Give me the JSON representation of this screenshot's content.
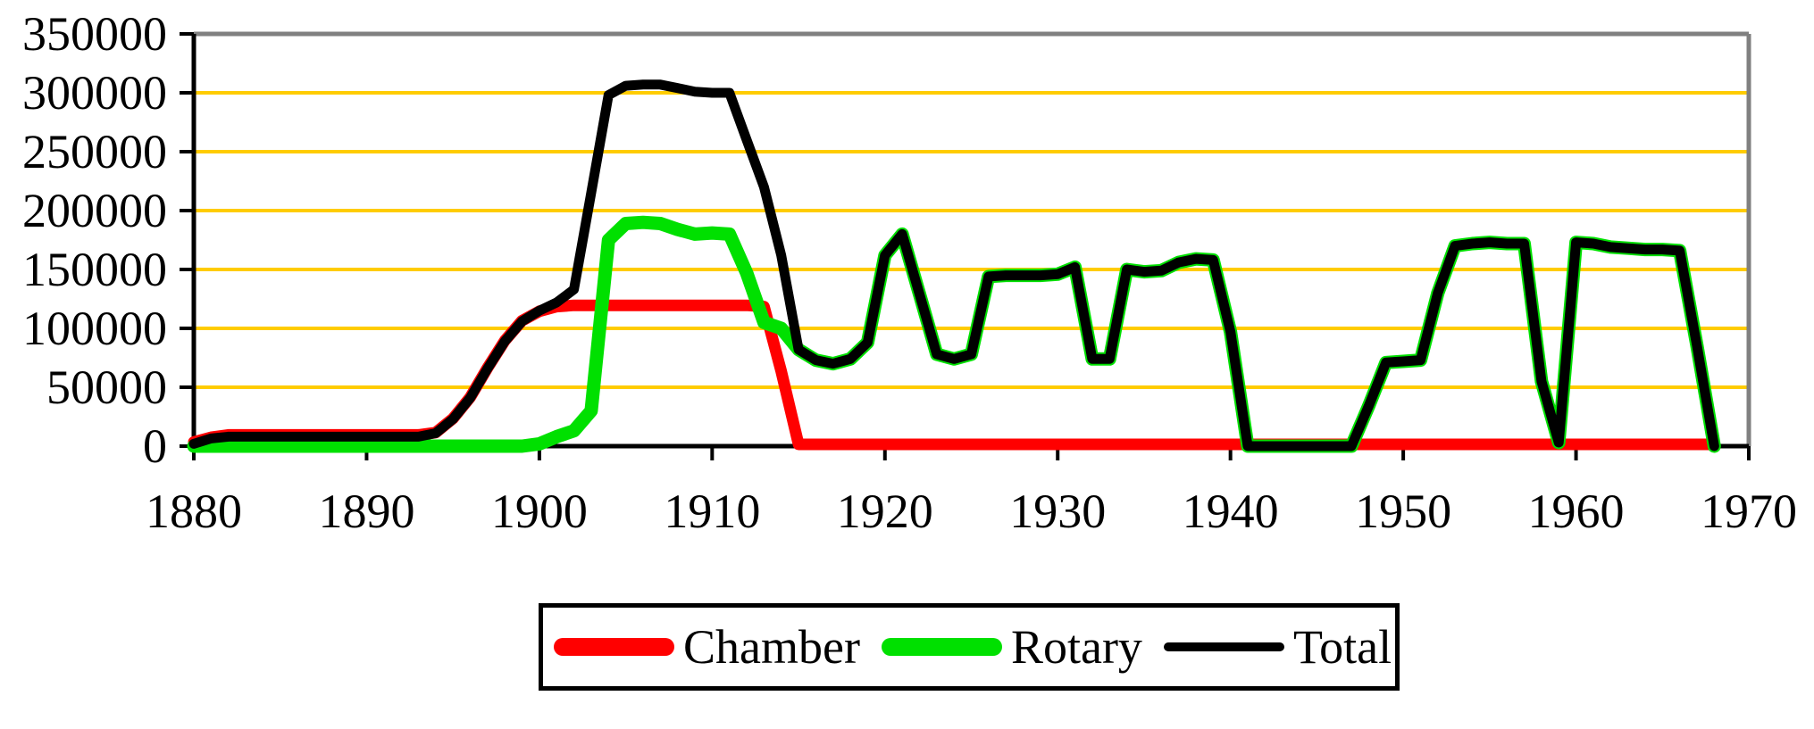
{
  "figure": {
    "background_color": "#FFFFFF",
    "plot_border_color": "#808080",
    "axis_color": "#000000",
    "gridline_color": "#FFCC00"
  },
  "legend": {
    "position": "bottom-center",
    "border_color": "#000000"
  },
  "chart_data": {
    "type": "line",
    "title": "",
    "xlabel": "",
    "ylabel": "",
    "x_range": [
      1880,
      1970
    ],
    "ylim": [
      0,
      350000
    ],
    "grid": "horizontal",
    "grid_color": "#FFCC00",
    "legend_position": "bottom",
    "x_tick_labels": [
      "1880",
      "1890",
      "1900",
      "1910",
      "1920",
      "1930",
      "1940",
      "1950",
      "1960",
      "1970"
    ],
    "y_tick_labels": [
      "0",
      "50000",
      "100000",
      "150000",
      "200000",
      "250000",
      "300000",
      "350000"
    ],
    "x_ticks": [
      1880,
      1890,
      1900,
      1910,
      1920,
      1930,
      1940,
      1950,
      1960,
      1970
    ],
    "y_ticks": [
      0,
      50000,
      100000,
      150000,
      200000,
      250000,
      300000,
      350000
    ],
    "years": [
      1880,
      1881,
      1882,
      1883,
      1884,
      1885,
      1886,
      1887,
      1888,
      1889,
      1890,
      1891,
      1892,
      1893,
      1894,
      1895,
      1896,
      1897,
      1898,
      1899,
      1900,
      1901,
      1902,
      1903,
      1904,
      1905,
      1906,
      1907,
      1908,
      1909,
      1910,
      1911,
      1912,
      1913,
      1914,
      1915,
      1916,
      1917,
      1918,
      1919,
      1920,
      1921,
      1922,
      1923,
      1924,
      1925,
      1926,
      1927,
      1928,
      1929,
      1930,
      1931,
      1932,
      1933,
      1934,
      1935,
      1936,
      1937,
      1938,
      1939,
      1940,
      1941,
      1942,
      1943,
      1944,
      1945,
      1946,
      1947,
      1948,
      1949,
      1950,
      1951,
      1952,
      1953,
      1954,
      1955,
      1956,
      1957,
      1958,
      1959,
      1960,
      1961,
      1962,
      1963,
      1964,
      1965,
      1966,
      1967,
      1968
    ],
    "series": [
      {
        "name": "Chamber",
        "color": "#FF0000",
        "values": [
          2000,
          6000,
          8000,
          8000,
          8000,
          8000,
          8000,
          8000,
          8000,
          8000,
          8000,
          8000,
          8000,
          8000,
          10000,
          22000,
          40000,
          65000,
          88000,
          105000,
          113000,
          117000,
          118000,
          118000,
          118000,
          118000,
          118000,
          118000,
          118000,
          118000,
          118000,
          118000,
          118000,
          117000,
          62000,
          0,
          0,
          0,
          0,
          0,
          0,
          0,
          0,
          0,
          0,
          0,
          0,
          0,
          0,
          0,
          0,
          0,
          0,
          0,
          0,
          0,
          0,
          0,
          0,
          0,
          0,
          0,
          0,
          0,
          0,
          0,
          0,
          0,
          0,
          0,
          0,
          0,
          0,
          0,
          0,
          0,
          0,
          0,
          0,
          0,
          0,
          0,
          0,
          0,
          0,
          0,
          0,
          0,
          0
        ]
      },
      {
        "name": "Rotary",
        "color": "#00E000",
        "values": [
          0,
          0,
          0,
          0,
          0,
          0,
          0,
          0,
          0,
          0,
          0,
          0,
          0,
          0,
          0,
          0,
          0,
          0,
          0,
          0,
          2000,
          8000,
          13000,
          30000,
          175000,
          189000,
          190000,
          189000,
          184000,
          180000,
          181000,
          180000,
          147000,
          105000,
          100000,
          82000,
          73000,
          70000,
          74000,
          88000,
          162000,
          180000,
          129000,
          78000,
          74000,
          78000,
          144000,
          145000,
          145000,
          145000,
          146000,
          152000,
          74000,
          74000,
          150000,
          148000,
          149000,
          156000,
          159000,
          158000,
          97000,
          0,
          0,
          0,
          0,
          0,
          0,
          0,
          34000,
          71000,
          72000,
          73000,
          130000,
          170000,
          172000,
          173000,
          172000,
          172000,
          55000,
          3000,
          173000,
          172000,
          169000,
          168000,
          167000,
          167000,
          166000,
          85000,
          0
        ]
      },
      {
        "name": "Total",
        "color": "#000000",
        "values": [
          2000,
          6500,
          8000,
          8000,
          8000,
          8000,
          8000,
          8000,
          8000,
          8000,
          8000,
          8000,
          8000,
          8000,
          11000,
          23000,
          41000,
          66000,
          89000,
          106000,
          115000,
          122000,
          133000,
          215000,
          298000,
          306000,
          307000,
          307000,
          304000,
          301000,
          300000,
          300000,
          260000,
          220000,
          162000,
          82000,
          73000,
          70000,
          74000,
          88000,
          162000,
          180000,
          129000,
          78000,
          74000,
          78000,
          144000,
          145000,
          145000,
          145000,
          146000,
          152000,
          74000,
          74000,
          150000,
          148000,
          149000,
          156000,
          159000,
          158000,
          97000,
          0,
          0,
          0,
          0,
          0,
          0,
          0,
          34000,
          71000,
          72000,
          73000,
          130000,
          170000,
          172000,
          173000,
          172000,
          172000,
          55000,
          3000,
          173000,
          172000,
          169000,
          168000,
          167000,
          167000,
          166000,
          85000,
          0
        ]
      }
    ]
  }
}
